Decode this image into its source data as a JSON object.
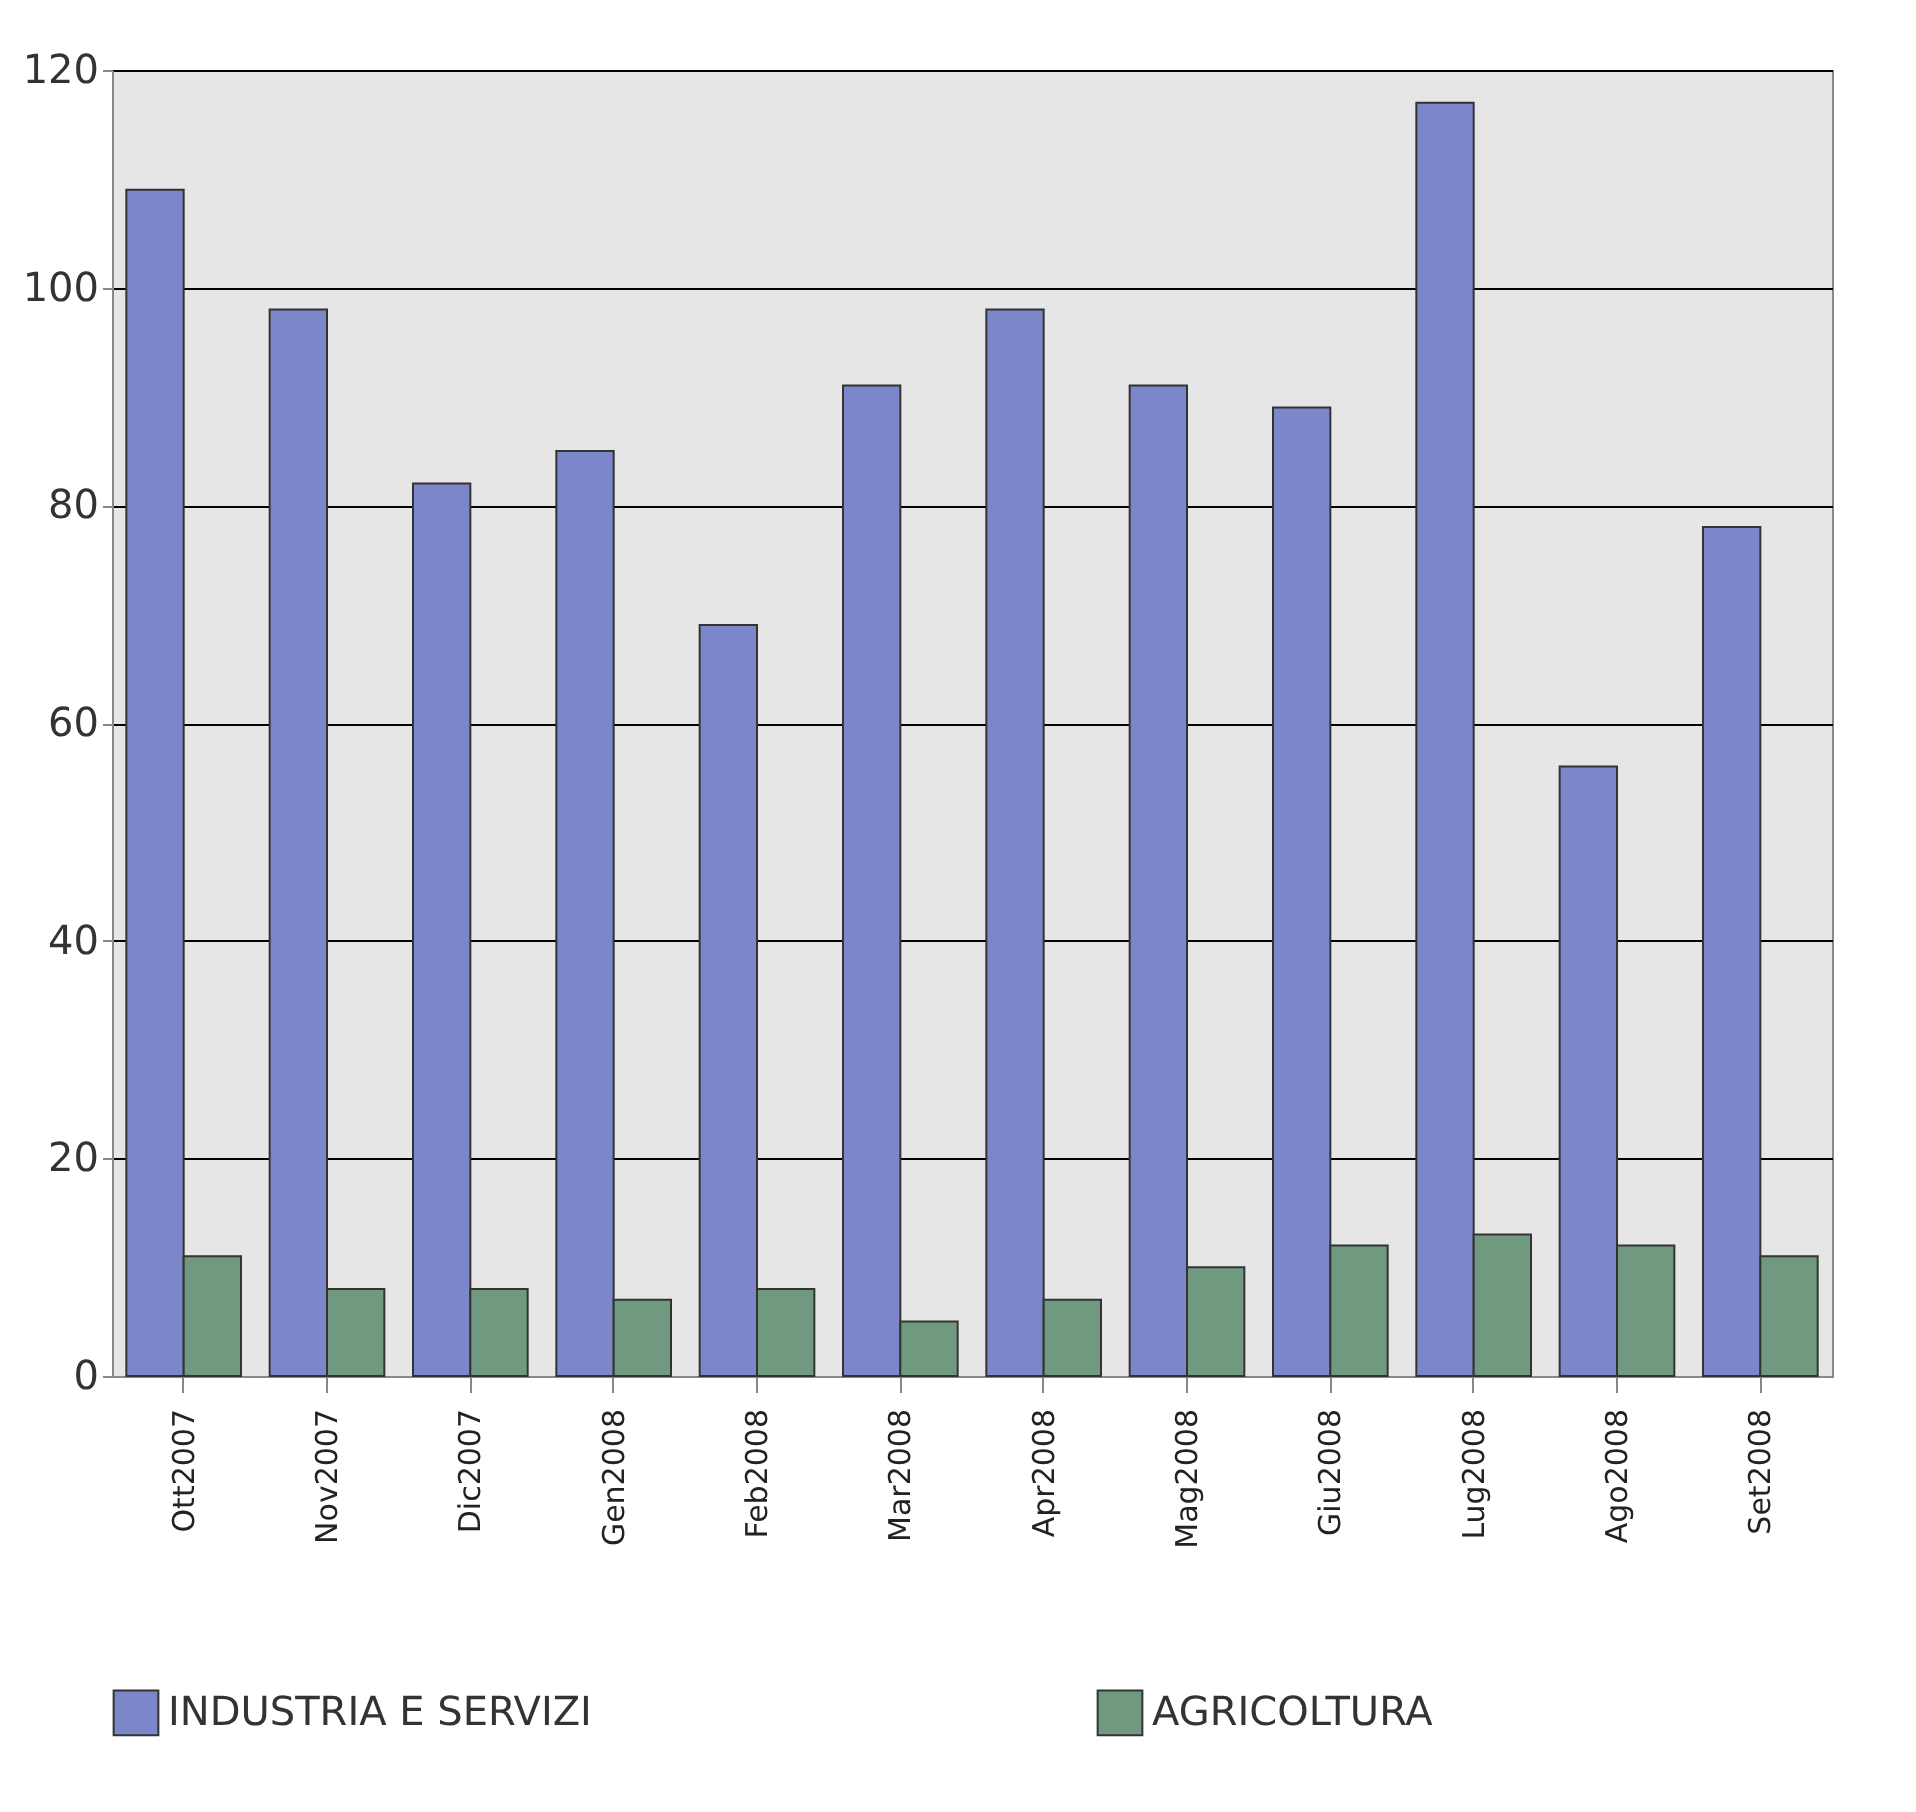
{
  "chart_data": {
    "type": "bar",
    "categories": [
      "Ott2007",
      "Nov2007",
      "Dic2007",
      "Gen2008",
      "Feb2008",
      "Mar2008",
      "Apr2008",
      "Mag2008",
      "Giu2008",
      "Lug2008",
      "Ago2008",
      "Set2008"
    ],
    "series": [
      {
        "name": "INDUSTRIA E SERVIZI",
        "color": "#7b87c8",
        "values": [
          109,
          98,
          82,
          85,
          69,
          91,
          98,
          91,
          89,
          117,
          56,
          78
        ]
      },
      {
        "name": "AGRICOLTURA",
        "color": "#6f9a80",
        "values": [
          11,
          8,
          8,
          7,
          8,
          5,
          7,
          10,
          12,
          13,
          12,
          11
        ]
      }
    ],
    "ylim": [
      0,
      120
    ],
    "yticks": [
      0,
      20,
      40,
      60,
      80,
      100,
      120
    ],
    "grid": "y",
    "legend": "bottom"
  }
}
